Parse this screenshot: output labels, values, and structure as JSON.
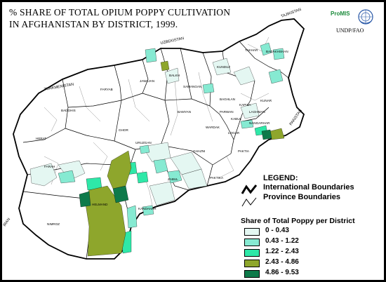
{
  "title": {
    "line1": "% SHARE OF TOTAL OPIUM POPPY CULTIVATION",
    "line2": "IN AFGHANISTAN BY DISTRICT, 1999."
  },
  "logos": {
    "promis": "ProMIS",
    "undp": "UNDP/FAO",
    "emblem_icon": "un-emblem-icon"
  },
  "legend": {
    "heading": "LEGEND:",
    "international": "International Boundaries",
    "province": "Province Boundaries",
    "share_title": "Share of Total Poppy  per District",
    "classes": [
      {
        "label": "0 - 0.43",
        "color": "#e4f7f2"
      },
      {
        "label": "0.43 - 1.22",
        "color": "#86ead2"
      },
      {
        "label": "1.22 - 2.43",
        "color": "#2ee8a8"
      },
      {
        "label": "2.43 - 4.86",
        "color": "#8ea62c"
      },
      {
        "label": "4.86 - 9.53",
        "color": "#0e7a4a"
      }
    ]
  },
  "countries": {
    "tajikistan": "TAJIKISTAN",
    "uzbekistan": "UZBEKISTAN",
    "turkmenistan": "TURKMENISTAN",
    "iran": "IRAN",
    "pakistan": "PAKISTAN"
  },
  "provinces": {
    "badakhshan": "BADAKHSHAN",
    "takhar": "TAKHAR",
    "kunduz": "KUNDUZ",
    "jawzjan": "JAWZJAN",
    "faryab": "FARYAB",
    "balkh": "BALKH",
    "samangan": "SAMANGAN",
    "badghis": "BADGHIS",
    "bamyan": "BAMYAN",
    "baghlan": "BAGHLAN",
    "kapisa": "KAPISA",
    "kunar": "KUNAR",
    "laghman": "LAGHMAN",
    "parwan": "PARWAN",
    "kabul": "KABUL",
    "nangarhar": "NANGARHAR",
    "logar": "LOGAR",
    "wardak": "WARDAK",
    "paktia": "PAKTIA",
    "ghor": "GHOR",
    "herat": "HERAT",
    "uruzgan": "URUZGAN",
    "ghazni": "GHAZNI",
    "paktika": "PAKTIKA",
    "farah": "FARAH",
    "zabul": "ZABUL",
    "kandahar": "KANDAHAR",
    "helmand": "HELMAND",
    "nimroz": "NIMROZ"
  }
}
